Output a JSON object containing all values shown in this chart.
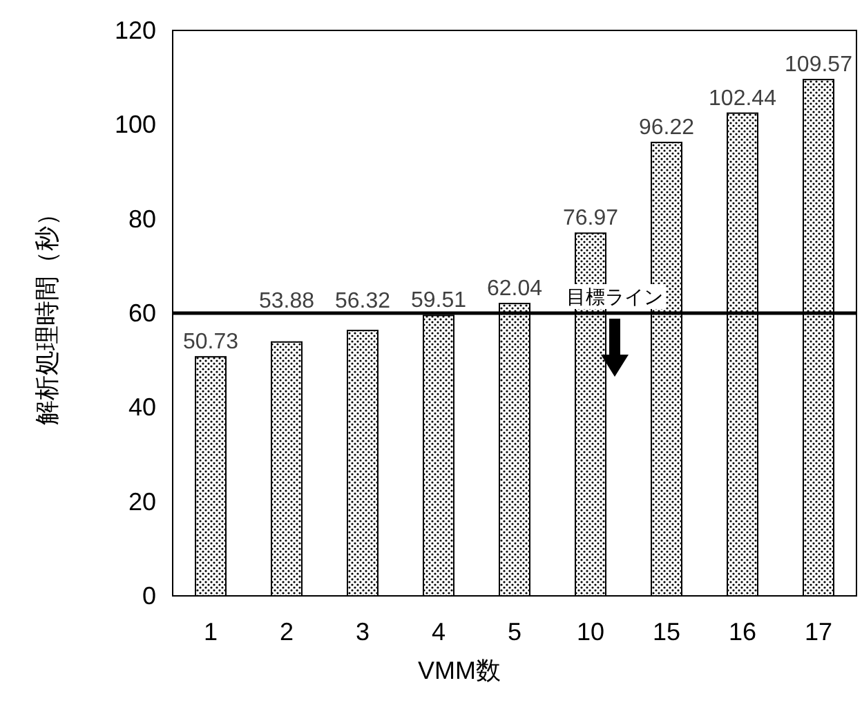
{
  "chart_data": {
    "type": "bar",
    "categories": [
      "1",
      "2",
      "3",
      "4",
      "5",
      "10",
      "15",
      "16",
      "17"
    ],
    "values": [
      50.73,
      53.88,
      56.32,
      59.51,
      62.04,
      76.97,
      96.22,
      102.44,
      109.57
    ],
    "color": "#000000",
    "xlabel": "VMM数",
    "ylabel": "解析処理時間（秒）",
    "ylim": [
      0,
      120
    ],
    "yticks": [
      0,
      20,
      40,
      60,
      80,
      100,
      120
    ],
    "data_labels": true,
    "grid": false,
    "ref_lines": [
      {
        "axis": "y",
        "value": 60,
        "label": "目標ライン",
        "color": "#000000",
        "line_style": "solid"
      }
    ]
  }
}
